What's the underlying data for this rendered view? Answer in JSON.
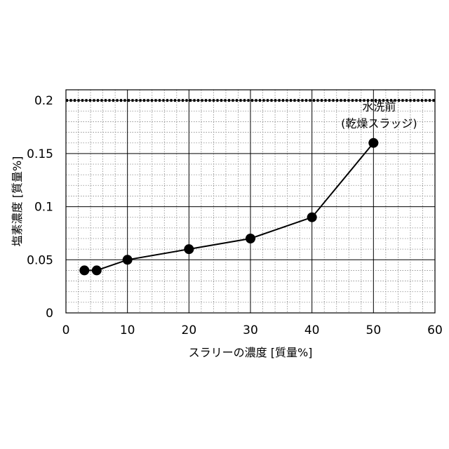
{
  "chart_data": {
    "type": "line",
    "xlabel": "スラリーの濃度 [質量%]",
    "ylabel": "塩素濃度 [質量%]",
    "xlim": [
      0,
      60
    ],
    "ylim": [
      0,
      0.21
    ],
    "x_ticks": [
      0,
      10,
      20,
      30,
      40,
      50,
      60
    ],
    "x_tick_labels": [
      "0",
      "10",
      "20",
      "30",
      "40",
      "50",
      "60"
    ],
    "y_ticks": [
      0,
      0.05,
      0.1,
      0.15,
      0.2
    ],
    "y_tick_labels": [
      "0",
      "0.05",
      "0.1",
      "0.15",
      "0.2"
    ],
    "grid": "major solid, minor dotted",
    "series": [
      {
        "x": [
          3,
          5,
          10,
          20,
          30,
          40,
          50
        ],
        "y": [
          0.04,
          0.04,
          0.05,
          0.06,
          0.07,
          0.09,
          0.16
        ],
        "color": "#000000",
        "marker": "filled-circle"
      }
    ],
    "reference_lines": [
      {
        "axis": "y",
        "value": 0.2,
        "style": "dotted",
        "color": "#000000"
      }
    ],
    "annotations": [
      {
        "lines": [
          "水洗前",
          "(乾燥スラッジ)"
        ],
        "anchor_x": 50,
        "anchor_y": 0.16
      }
    ]
  }
}
